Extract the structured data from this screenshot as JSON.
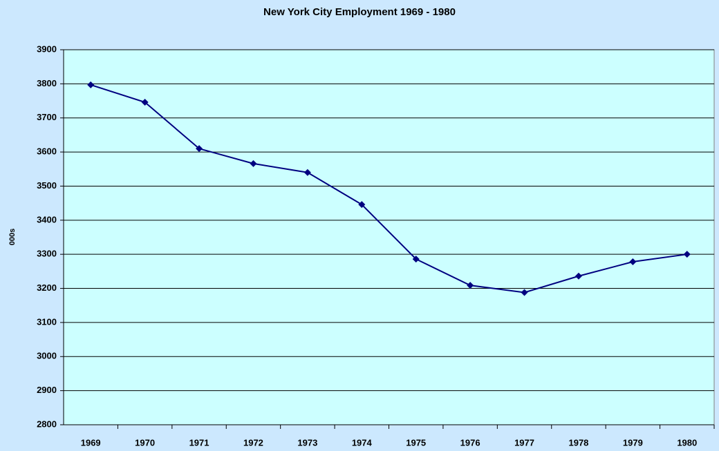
{
  "chart_data": {
    "type": "line",
    "title": "New York City Employment 1969 - 1980",
    "y_label": "000s",
    "categories": [
      "1969",
      "1970",
      "1971",
      "1972",
      "1973",
      "1974",
      "1975",
      "1976",
      "1977",
      "1978",
      "1979",
      "1980"
    ],
    "series": [
      {
        "name": "Employment",
        "color": "#000080",
        "values": [
          3797,
          3746,
          3610,
          3566,
          3540,
          3446,
          3286,
          3209,
          3188,
          3236,
          3278,
          3300
        ]
      }
    ],
    "ylim": [
      2800,
      3900
    ],
    "yticks": [
      2800,
      2900,
      3000,
      3100,
      3200,
      3300,
      3400,
      3500,
      3600,
      3700,
      3800,
      3900
    ],
    "grid": true
  }
}
